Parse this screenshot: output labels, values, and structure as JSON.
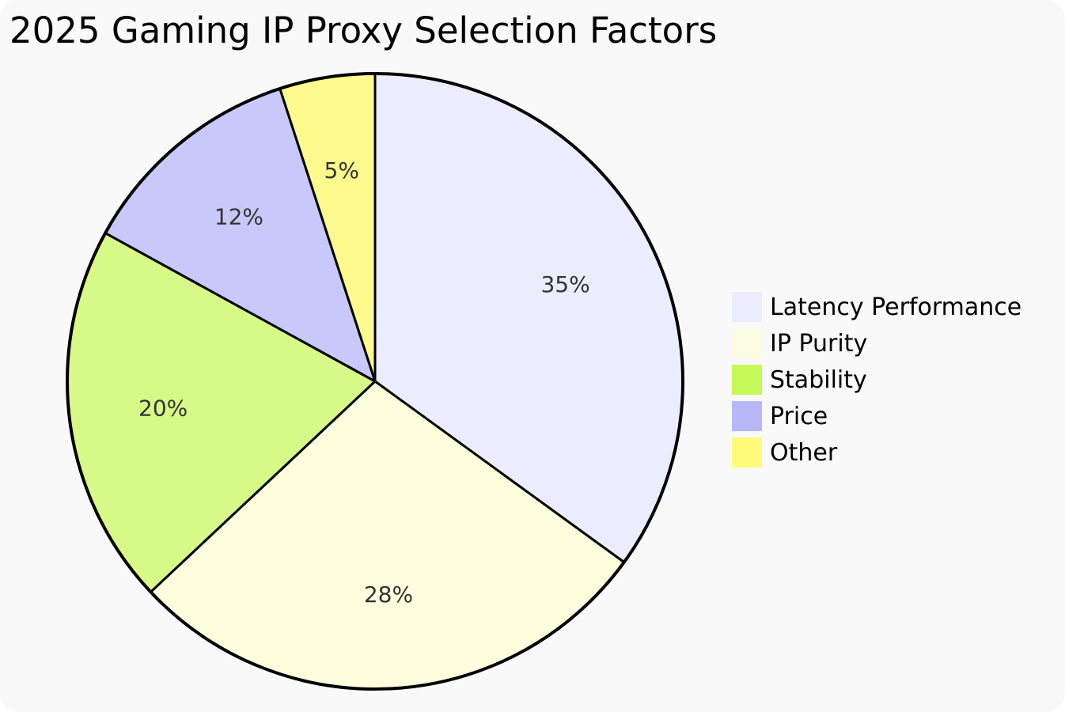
{
  "chart_data": {
    "type": "pie",
    "title": "2025 Gaming IP Proxy Selection Factors",
    "slices": [
      {
        "label": "Latency Performance",
        "value": 35,
        "display": "35%",
        "color": "#ececff"
      },
      {
        "label": "IP Purity",
        "value": 28,
        "display": "28%",
        "color": "#ffffde"
      },
      {
        "label": "Stability",
        "value": 20,
        "display": "20%",
        "color": "#d6f987"
      },
      {
        "label": "Price",
        "value": 12,
        "display": "12%",
        "color": "#c8c8fa"
      },
      {
        "label": "Other",
        "value": 5,
        "display": "5%",
        "color": "#fffa8e"
      }
    ],
    "legend_colors": [
      "#ececff",
      "#fdfde6",
      "#c6f85a",
      "#b8b8f8",
      "#fffb7a"
    ],
    "legend_position": "right"
  }
}
